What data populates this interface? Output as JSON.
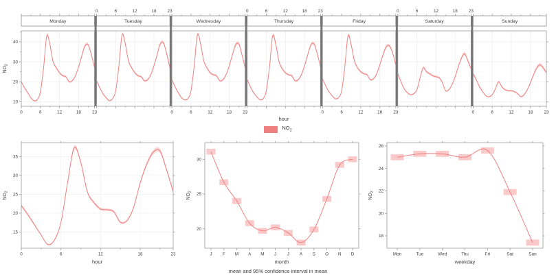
{
  "figure": {
    "color": "#f08080",
    "ribbon_color": "#f7bdbc",
    "box_color": "#f9bcbb",
    "grid_color": "#ececec",
    "grid_color_faint": "#f2f2f2",
    "border_color": "#9a9a9a",
    "separator_color": "#757575",
    "strip_border_color": "#8c8c8c",
    "text_color": "#3d3d3d",
    "caption": "mean and 95% confidence interval in mean",
    "legend": {
      "label_base": "NO",
      "label_sub": "2"
    },
    "ylabel": {
      "base": "NO",
      "sub": "2"
    }
  },
  "chart_data": [
    {
      "id": "day-hour",
      "type": "line",
      "xlabel": "hour",
      "ylabel": "NO2",
      "xticks": [
        0,
        6,
        12,
        18,
        23
      ],
      "xminorticks": [
        3,
        9,
        15,
        21
      ],
      "yticks": [
        10,
        20,
        30,
        40
      ],
      "ylim": [
        7.7,
        45.5
      ],
      "ci_halfwidth": 0.6,
      "legend_position": "bottom",
      "grid": true,
      "days": [
        "Monday",
        "Tuesday",
        "Wednesday",
        "Thursday",
        "Friday",
        "Saturday",
        "Sunday"
      ],
      "series": [
        {
          "name": "Monday",
          "values": [
            20,
            17,
            14.5,
            12,
            10.5,
            11,
            15,
            27,
            43,
            38.5,
            30,
            27,
            24.5,
            23,
            22.5,
            20,
            20.5,
            23,
            27.5,
            33,
            38,
            38.5,
            33.5,
            27
          ]
        },
        {
          "name": "Tuesday",
          "values": [
            20.5,
            17,
            14,
            12,
            10.5,
            11.5,
            15.5,
            28,
            43.5,
            39,
            30.5,
            27,
            24.5,
            23,
            22.5,
            20.5,
            21,
            23.5,
            28,
            33.5,
            39,
            39.5,
            34,
            27
          ]
        },
        {
          "name": "Wednesday",
          "values": [
            21,
            17.5,
            14.5,
            12,
            11,
            11.5,
            15.5,
            28,
            43.5,
            39,
            30.5,
            27,
            24.5,
            23.5,
            23,
            20.5,
            21,
            23.5,
            28,
            33.5,
            38.5,
            39,
            33.5,
            27
          ]
        },
        {
          "name": "Thursday",
          "values": [
            21,
            17.5,
            14.5,
            12.5,
            11,
            11.5,
            15.5,
            27.5,
            43,
            38.5,
            30,
            26.5,
            24.5,
            23.5,
            23,
            20.5,
            21,
            23.5,
            28,
            33.5,
            38.5,
            39,
            34,
            27.5
          ]
        },
        {
          "name": "Friday",
          "values": [
            21.5,
            18,
            15,
            13,
            11.5,
            12,
            15.5,
            27.5,
            43,
            38.5,
            30.5,
            27,
            25,
            24,
            23.5,
            21,
            21.5,
            24,
            28.5,
            33.5,
            37.5,
            38,
            34.5,
            28.5
          ]
        },
        {
          "name": "Saturday",
          "values": [
            24,
            20,
            16.5,
            14.5,
            13.5,
            14,
            16,
            22,
            27,
            25,
            24,
            23,
            22.5,
            22,
            19.5,
            15.5,
            16,
            18.5,
            22.5,
            27.5,
            32,
            34,
            30.5,
            26.5
          ]
        },
        {
          "name": "Sunday",
          "values": [
            24,
            21,
            17.5,
            15,
            13,
            12.5,
            13.5,
            16.5,
            20,
            17.5,
            16,
            15.5,
            15.5,
            15,
            14,
            12.5,
            13.5,
            16,
            19.5,
            23.5,
            27,
            28.5,
            27,
            24.5
          ]
        }
      ]
    },
    {
      "id": "hour",
      "type": "line",
      "xlabel": "hour",
      "ylabel": "NO2",
      "xticks": [
        0,
        6,
        12,
        18,
        23
      ],
      "xminorticks": [
        3,
        9,
        15,
        21
      ],
      "yticks": [
        15,
        20,
        25,
        30,
        35
      ],
      "ylim": [
        10.7,
        38.7
      ],
      "ci_halfwidth": 0.4,
      "grid": true,
      "values": [
        22,
        19.6,
        16.9,
        14.2,
        11.7,
        12.8,
        17.5,
        28,
        37.3,
        33.5,
        25.7,
        22.8,
        21.1,
        20.9,
        20.4,
        17.6,
        18,
        21.5,
        28,
        33,
        36.2,
        36.5,
        31.5,
        25.7
      ]
    },
    {
      "id": "month",
      "type": "line",
      "xlabel": "month",
      "ylabel": "NO2",
      "categories": [
        "J",
        "F",
        "M",
        "A",
        "M",
        "J",
        "J",
        "A",
        "S",
        "O",
        "N",
        "D"
      ],
      "yticks": [
        20,
        25,
        30
      ],
      "ylim": [
        17.2,
        32.4
      ],
      "ci_halfwidth": 0.42,
      "grid": false,
      "values": [
        31.1,
        26.7,
        24,
        20.8,
        19.7,
        20.2,
        19.4,
        18,
        19.9,
        24.3,
        29.2,
        30
      ]
    },
    {
      "id": "weekday",
      "type": "line",
      "xlabel": "weekday",
      "ylabel": "NO2",
      "categories": [
        "Mon",
        "Tue",
        "Wed",
        "Thu",
        "Fri",
        "Sat",
        "Sun"
      ],
      "yticks": [
        18,
        20,
        22,
        24,
        26
      ],
      "ylim": [
        16.9,
        26.3
      ],
      "ci_halfwidth": 0.27,
      "grid": false,
      "values": [
        25,
        25.3,
        25.3,
        25,
        25.6,
        21.9,
        17.4
      ]
    }
  ]
}
